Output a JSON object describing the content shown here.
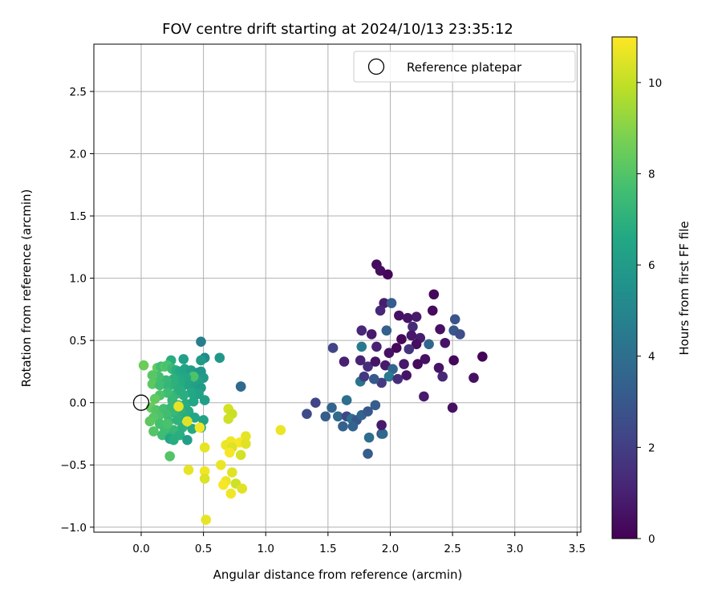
{
  "chart_data": {
    "type": "scatter",
    "title": "FOV centre drift starting at 2024/10/13 23:35:12",
    "xlabel": "Angular distance from reference (arcmin)",
    "ylabel": "Rotation from reference (arcmin)",
    "xlim": [
      -0.38,
      3.53
    ],
    "ylim": [
      -1.04,
      2.88
    ],
    "xticks": [
      "0.0",
      "0.5",
      "1.0",
      "1.5",
      "2.0",
      "2.5",
      "3.0",
      "3.5"
    ],
    "yticks": [
      "-1.0",
      "-0.5",
      "0.0",
      "0.5",
      "1.0",
      "1.5",
      "2.0",
      "2.5"
    ],
    "grid": true,
    "legend": {
      "position": "top-right",
      "entries": [
        "Reference platepar"
      ]
    },
    "reference": {
      "x": 0.0,
      "y": 0.0,
      "label": "Reference platepar"
    },
    "colorbar": {
      "label": "Hours from first FF file",
      "min": 0,
      "max": 11,
      "ticks": [
        "0",
        "2",
        "4",
        "6",
        "8",
        "10"
      ],
      "colormap": "viridis"
    },
    "points": [
      [
        1.89,
        1.11,
        0.3
      ],
      [
        1.92,
        1.06,
        0.4
      ],
      [
        1.98,
        1.03,
        0.2
      ],
      [
        2.35,
        0.87,
        0.2
      ],
      [
        1.95,
        0.8,
        0.9
      ],
      [
        1.92,
        0.74,
        1.2
      ],
      [
        2.01,
        0.8,
        3.2
      ],
      [
        2.21,
        0.69,
        0.8
      ],
      [
        2.07,
        0.7,
        0.5
      ],
      [
        2.14,
        0.68,
        0.6
      ],
      [
        2.34,
        0.74,
        0.3
      ],
      [
        2.18,
        0.61,
        1.3
      ],
      [
        2.24,
        0.52,
        0.9
      ],
      [
        1.77,
        0.58,
        1.2
      ],
      [
        1.85,
        0.55,
        0.8
      ],
      [
        1.97,
        0.58,
        3.4
      ],
      [
        2.09,
        0.51,
        0.2
      ],
      [
        2.17,
        0.54,
        0.7
      ],
      [
        2.4,
        0.59,
        0.5
      ],
      [
        2.52,
        0.67,
        2.8
      ],
      [
        2.51,
        0.58,
        3.0
      ],
      [
        2.56,
        0.55,
        2.6
      ],
      [
        2.44,
        0.48,
        0.6
      ],
      [
        2.31,
        0.47,
        3.6
      ],
      [
        2.21,
        0.47,
        0.4
      ],
      [
        2.15,
        0.43,
        1.6
      ],
      [
        2.05,
        0.44,
        0.2
      ],
      [
        1.99,
        0.4,
        0.5
      ],
      [
        1.89,
        0.45,
        1.0
      ],
      [
        1.77,
        0.45,
        4.5
      ],
      [
        1.54,
        0.44,
        2.2
      ],
      [
        1.63,
        0.33,
        1.0
      ],
      [
        1.76,
        0.34,
        1.1
      ],
      [
        1.82,
        0.29,
        1.4
      ],
      [
        1.88,
        0.33,
        0.6
      ],
      [
        1.96,
        0.3,
        0.8
      ],
      [
        2.02,
        0.27,
        3.6
      ],
      [
        2.11,
        0.31,
        0.7
      ],
      [
        2.22,
        0.31,
        0.3
      ],
      [
        2.28,
        0.35,
        0.5
      ],
      [
        2.39,
        0.28,
        0.6
      ],
      [
        2.51,
        0.34,
        0.2
      ],
      [
        2.74,
        0.37,
        0.1
      ],
      [
        2.42,
        0.21,
        1.2
      ],
      [
        2.67,
        0.2,
        0.5
      ],
      [
        2.13,
        0.22,
        0.6
      ],
      [
        1.99,
        0.21,
        4.5
      ],
      [
        1.93,
        0.16,
        1.9
      ],
      [
        1.76,
        0.17,
        4.2
      ],
      [
        1.79,
        0.21,
        1.8
      ],
      [
        1.87,
        0.19,
        3.1
      ],
      [
        2.06,
        0.19,
        1.4
      ],
      [
        2.27,
        0.05,
        0.8
      ],
      [
        2.5,
        -0.04,
        0.5
      ],
      [
        1.88,
        -0.02,
        3.2
      ],
      [
        1.65,
        0.02,
        4.0
      ],
      [
        1.53,
        -0.04,
        3.5
      ],
      [
        1.4,
        -0.0,
        2.2
      ],
      [
        1.33,
        -0.09,
        2.5
      ],
      [
        1.48,
        -0.11,
        3.2
      ],
      [
        1.58,
        -0.11,
        3.8
      ],
      [
        1.65,
        -0.11,
        2.3
      ],
      [
        1.69,
        -0.13,
        4.1
      ],
      [
        1.73,
        -0.14,
        2.9
      ],
      [
        1.77,
        -0.1,
        3.5
      ],
      [
        1.82,
        -0.07,
        3.0
      ],
      [
        1.62,
        -0.19,
        3.4
      ],
      [
        1.7,
        -0.19,
        3.5
      ],
      [
        1.83,
        -0.28,
        3.9
      ],
      [
        1.93,
        -0.25,
        2.6
      ],
      [
        1.94,
        -0.25,
        3.7
      ],
      [
        1.93,
        -0.18,
        0.8
      ],
      [
        1.82,
        -0.41,
        3.2
      ],
      [
        0.8,
        0.13,
        3.6
      ],
      [
        0.8,
        0.13,
        3.8
      ],
      [
        0.48,
        0.49,
        4.6
      ],
      [
        0.63,
        0.36,
        5.8
      ],
      [
        0.51,
        0.36,
        5.2
      ],
      [
        0.48,
        0.34,
        6.0
      ],
      [
        0.34,
        0.35,
        6.2
      ],
      [
        0.24,
        0.34,
        6.8
      ],
      [
        0.02,
        0.3,
        8.5
      ],
      [
        0.13,
        0.28,
        8.3
      ],
      [
        0.16,
        0.29,
        7.6
      ],
      [
        0.19,
        0.29,
        8.0
      ],
      [
        0.21,
        0.3,
        7.8
      ],
      [
        0.25,
        0.27,
        7.4
      ],
      [
        0.28,
        0.26,
        6.9
      ],
      [
        0.31,
        0.25,
        6.6
      ],
      [
        0.35,
        0.27,
        6.4
      ],
      [
        0.4,
        0.26,
        6.1
      ],
      [
        0.45,
        0.24,
        5.9
      ],
      [
        0.48,
        0.25,
        5.8
      ],
      [
        0.5,
        0.2,
        6.0
      ],
      [
        0.46,
        0.18,
        6.2
      ],
      [
        0.42,
        0.21,
        7.9
      ],
      [
        0.36,
        0.2,
        6.5
      ],
      [
        0.31,
        0.18,
        6.7
      ],
      [
        0.26,
        0.19,
        7.0
      ],
      [
        0.2,
        0.18,
        7.3
      ],
      [
        0.14,
        0.21,
        7.7
      ],
      [
        0.09,
        0.22,
        8.1
      ],
      [
        0.09,
        0.15,
        8.2
      ],
      [
        0.15,
        0.14,
        7.6
      ],
      [
        0.22,
        0.13,
        7.2
      ],
      [
        0.28,
        0.14,
        7.0
      ],
      [
        0.33,
        0.13,
        6.7
      ],
      [
        0.39,
        0.14,
        6.4
      ],
      [
        0.44,
        0.13,
        6.2
      ],
      [
        0.48,
        0.12,
        6.0
      ],
      [
        0.46,
        0.07,
        6.3
      ],
      [
        0.4,
        0.08,
        6.6
      ],
      [
        0.34,
        0.06,
        6.9
      ],
      [
        0.28,
        0.07,
        7.2
      ],
      [
        0.21,
        0.08,
        7.5
      ],
      [
        0.15,
        0.06,
        7.9
      ],
      [
        0.11,
        0.03,
        8.3
      ],
      [
        0.08,
        -0.04,
        8.4
      ],
      [
        0.12,
        -0.06,
        8.0
      ],
      [
        0.18,
        -0.05,
        7.7
      ],
      [
        0.24,
        -0.04,
        7.4
      ],
      [
        0.3,
        -0.02,
        7.1
      ],
      [
        0.36,
        -0.01,
        6.8
      ],
      [
        0.42,
        0.01,
        6.5
      ],
      [
        0.51,
        0.02,
        6.2
      ],
      [
        0.38,
        -0.07,
        6.7
      ],
      [
        0.32,
        -0.07,
        7.0
      ],
      [
        0.26,
        -0.08,
        7.3
      ],
      [
        0.2,
        -0.09,
        7.6
      ],
      [
        0.14,
        -0.11,
        7.9
      ],
      [
        0.1,
        -0.12,
        8.1
      ],
      [
        0.07,
        -0.15,
        8.2
      ],
      [
        0.15,
        -0.17,
        7.7
      ],
      [
        0.22,
        -0.15,
        7.4
      ],
      [
        0.29,
        -0.14,
        7.1
      ],
      [
        0.36,
        -0.12,
        6.8
      ],
      [
        0.43,
        -0.12,
        6.5
      ],
      [
        0.5,
        -0.14,
        6.3
      ],
      [
        0.48,
        -0.2,
        6.4
      ],
      [
        0.41,
        -0.21,
        6.7
      ],
      [
        0.33,
        -0.2,
        7.0
      ],
      [
        0.26,
        -0.22,
        7.3
      ],
      [
        0.19,
        -0.21,
        7.6
      ],
      [
        0.1,
        -0.23,
        8.0
      ],
      [
        0.17,
        -0.26,
        7.5
      ],
      [
        0.24,
        -0.27,
        7.2
      ],
      [
        0.31,
        -0.26,
        6.9
      ],
      [
        0.23,
        -0.29,
        6.5
      ],
      [
        0.26,
        -0.3,
        6.8
      ],
      [
        0.37,
        -0.3,
        6.2
      ],
      [
        0.23,
        -0.43,
        8.0
      ],
      [
        0.21,
        -0.17,
        7.8
      ],
      [
        0.31,
        0.1,
        6.9
      ],
      [
        0.25,
        0.02,
        7.3
      ],
      [
        0.3,
        -0.03,
        10.6
      ],
      [
        0.37,
        -0.15,
        10.5
      ],
      [
        0.47,
        -0.2,
        10.8
      ],
      [
        0.7,
        -0.05,
        10.3
      ],
      [
        0.73,
        -0.09,
        10.1
      ],
      [
        0.7,
        -0.13,
        10.2
      ],
      [
        0.84,
        -0.27,
        10.6
      ],
      [
        0.72,
        -0.31,
        10.8
      ],
      [
        0.79,
        -0.32,
        10.9
      ],
      [
        0.84,
        -0.33,
        10.5
      ],
      [
        0.68,
        -0.34,
        10.7
      ],
      [
        0.73,
        -0.36,
        10.4
      ],
      [
        0.51,
        -0.36,
        10.6
      ],
      [
        0.71,
        -0.4,
        10.9
      ],
      [
        0.8,
        -0.42,
        10.3
      ],
      [
        0.64,
        -0.5,
        10.7
      ],
      [
        0.73,
        -0.56,
        10.5
      ],
      [
        0.51,
        -0.55,
        10.8
      ],
      [
        0.38,
        -0.54,
        10.6
      ],
      [
        0.51,
        -0.61,
        10.4
      ],
      [
        0.68,
        -0.63,
        10.7
      ],
      [
        0.66,
        -0.66,
        10.9
      ],
      [
        0.76,
        -0.65,
        10.2
      ],
      [
        0.81,
        -0.69,
        10.5
      ],
      [
        0.72,
        -0.73,
        10.8
      ],
      [
        0.52,
        -0.94,
        10.6
      ],
      [
        1.12,
        -0.22,
        10.7
      ]
    ]
  }
}
